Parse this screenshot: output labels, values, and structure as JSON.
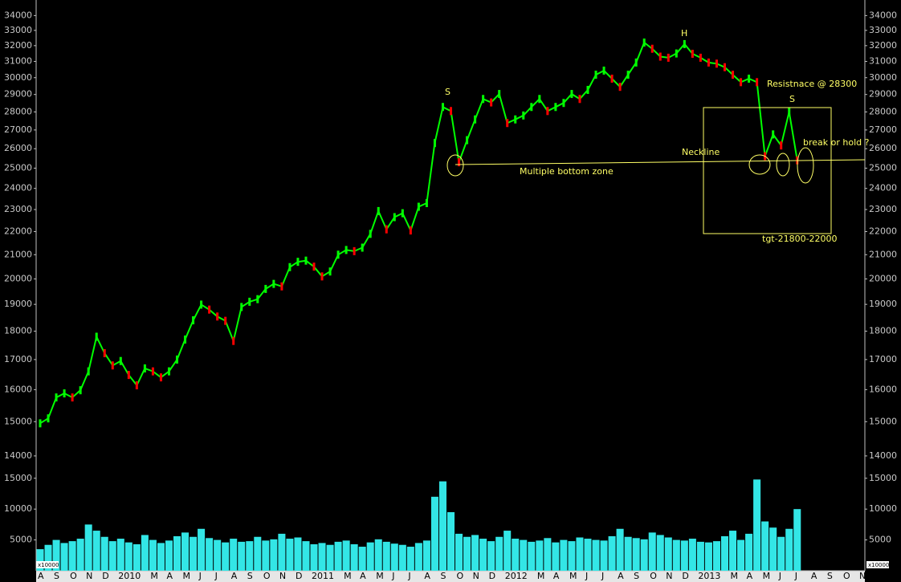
{
  "chart_data": {
    "type": "stock",
    "log_scale": true,
    "ylim": [
      13400,
      34800
    ],
    "yticks": [
      14000,
      15000,
      16000,
      17000,
      18000,
      19000,
      20000,
      21000,
      22000,
      23000,
      24000,
      25000,
      26000,
      27000,
      28000,
      29000,
      30000,
      31000,
      32000,
      33000,
      34000
    ],
    "categories": [
      "A",
      null,
      "S",
      null,
      "O",
      null,
      "N",
      null,
      "D",
      null,
      "2010",
      null,
      null,
      null,
      "M",
      null,
      "A",
      null,
      "M",
      null,
      "J",
      null,
      "J",
      null,
      "A",
      null,
      "S",
      null,
      "O",
      null,
      "N",
      null,
      "D",
      null,
      "2011",
      null,
      null,
      null,
      "M",
      null,
      "A",
      null,
      "M",
      null,
      "J",
      null,
      "J",
      null,
      "A",
      null,
      "S",
      null,
      "O",
      null,
      "N",
      null,
      "D",
      null,
      "2012",
      null,
      null,
      null,
      "M",
      null,
      "A",
      null,
      "M",
      null,
      "J",
      null,
      "J",
      null,
      "A",
      null,
      "S",
      null,
      "O",
      null,
      "N",
      null,
      "D",
      null,
      "2013",
      null,
      null,
      null,
      "M",
      null,
      "A",
      null,
      "M",
      null,
      "J",
      null,
      "J",
      null,
      "A",
      null,
      "S",
      null,
      "O",
      null,
      "N",
      null
    ],
    "price": {
      "up_color": "#00ff00",
      "down_color": "#ff0000",
      "values": [
        14950,
        15100,
        15750,
        15880,
        15750,
        15980,
        16600,
        17800,
        17220,
        16800,
        16950,
        16480,
        16140,
        16700,
        16600,
        16400,
        16600,
        17000,
        17700,
        18400,
        18990,
        18800,
        18540,
        18380,
        17650,
        18900,
        19100,
        19200,
        19600,
        19800,
        19700,
        20480,
        20700,
        20750,
        20500,
        20100,
        20300,
        21000,
        21200,
        21150,
        21300,
        21900,
        22930,
        22100,
        22650,
        22830,
        22050,
        23130,
        23300,
        26300,
        28280,
        28050,
        25300,
        26450,
        27580,
        28740,
        28540,
        29030,
        27380,
        27580,
        27800,
        28280,
        28740,
        28050,
        28280,
        28510,
        29030,
        28740,
        29270,
        30180,
        30430,
        29940,
        29450,
        30180,
        30930,
        32200,
        31800,
        31300,
        31230,
        31500,
        32100,
        31480,
        31230,
        30930,
        30860,
        30640,
        30180,
        29730,
        29940,
        29730,
        25610,
        26760,
        26170,
        28000,
        25400,
        null,
        null,
        null,
        null,
        null,
        null,
        null,
        null,
        null
      ]
    },
    "volume": {
      "color": "#33e6e6",
      "ylim": [
        0,
        15100
      ],
      "yticks": [
        5000,
        10000,
        15000
      ],
      "unit_label": "x10000",
      "values": [
        3500,
        4200,
        5000,
        4500,
        4800,
        5200,
        7500,
        6500,
        5500,
        4800,
        5200,
        4600,
        4300,
        5800,
        5000,
        4500,
        4900,
        5600,
        6200,
        5500,
        6800,
        5300,
        5000,
        4600,
        5200,
        4700,
        4800,
        5500,
        4900,
        5100,
        6000,
        5200,
        5400,
        4800,
        4300,
        4500,
        4200,
        4700,
        4900,
        4300,
        3900,
        4600,
        5100,
        4700,
        4400,
        4200,
        3900,
        4500,
        4900,
        12000,
        14500,
        9500,
        6000,
        5500,
        5800,
        5200,
        4800,
        5500,
        6500,
        5200,
        5000,
        4700,
        4900,
        5300,
        4600,
        5000,
        4800,
        5400,
        5200,
        5000,
        4900,
        5600,
        6800,
        5500,
        5300,
        5100,
        6200,
        5800,
        5400,
        5000,
        4900,
        5200,
        4700,
        4600,
        4800,
        5600,
        6500,
        5000,
        6000,
        14800,
        8000,
        7000,
        5500,
        6800,
        10000,
        null,
        null,
        null,
        null,
        null,
        null,
        null,
        null,
        null
      ]
    },
    "annotations": [
      "S",
      "H",
      "S",
      "Resistnace @ 28300",
      "Neckline",
      "break or hold ?",
      "Multiple bottom zone",
      "tgt-21800-22000"
    ]
  }
}
